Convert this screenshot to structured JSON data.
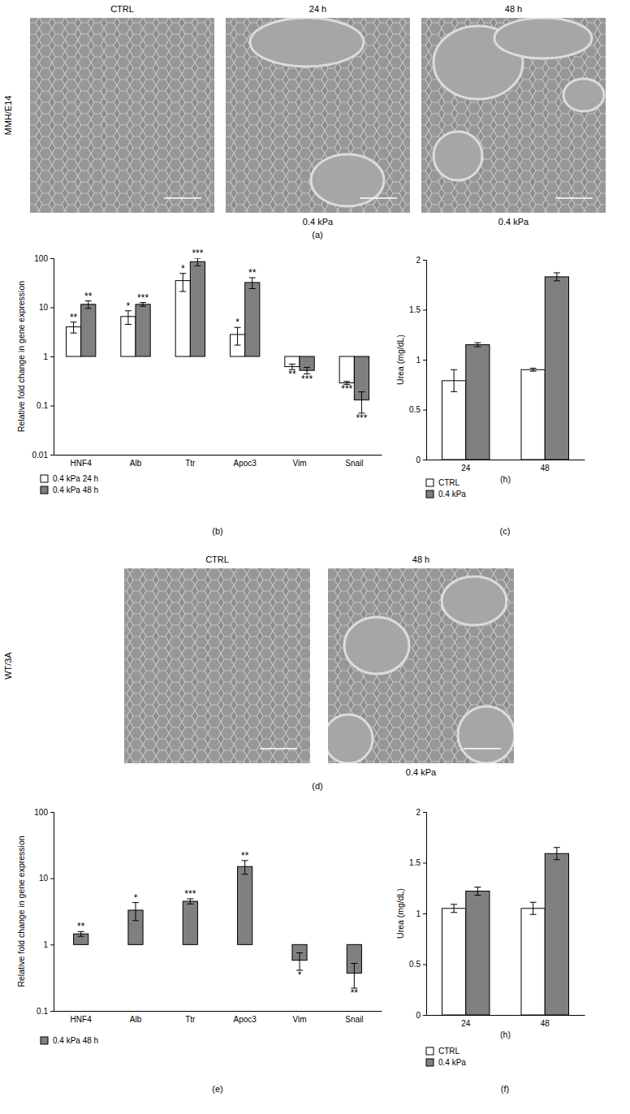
{
  "figure": {
    "panels": [
      {
        "label": "(a)",
        "row_label": "MMH/E14",
        "images": [
          {
            "title": "CTRL"
          },
          {
            "title": "24 h",
            "caption": "0.4 kPa"
          },
          {
            "title": "48 h",
            "caption": "0.4 kPa"
          }
        ]
      },
      {
        "label": "(d)",
        "row_label": "WT/3A",
        "images": [
          {
            "title": "CTRL"
          },
          {
            "title": "48 h",
            "caption": "0.4 kPa"
          }
        ]
      }
    ]
  },
  "chart_data": [
    {
      "type": "bar",
      "title": "(b)",
      "y_label": "Relative fold change in gene expression",
      "categories": [
        "HNF4",
        "Alb",
        "Ttr",
        "Apoc3",
        "Vim",
        "Snail"
      ],
      "series": [
        {
          "name": "0.4 kPa 24 h",
          "color": "#ffffff",
          "values": [
            4,
            6.5,
            35,
            2.8,
            0.62,
            0.29
          ],
          "errors": [
            1,
            2,
            14,
            1.1,
            0.08,
            0.02
          ],
          "significance": [
            "**",
            "*",
            "*",
            "*",
            "**",
            "***"
          ]
        },
        {
          "name": "0.4 kPa 48 h",
          "color": "#808080",
          "values": [
            11.5,
            11.5,
            85,
            32,
            0.52,
            0.13
          ],
          "errors": [
            2,
            1,
            15,
            8,
            0.08,
            0.06
          ],
          "significance": [
            "**",
            "***",
            "***",
            "**",
            "***",
            "***"
          ]
        }
      ],
      "log": "y",
      "ylim": [
        0.01,
        100
      ],
      "yticks": [
        0.01,
        0.1,
        1,
        10,
        100
      ],
      "legend": "bottom"
    },
    {
      "type": "bar",
      "title": "(c)",
      "y_label": "Urea (mg/dL)",
      "x_label": "(h)",
      "categories": [
        "24",
        "48"
      ],
      "series": [
        {
          "name": "CTRL",
          "color": "#ffffff",
          "values": [
            0.79,
            0.9
          ],
          "errors": [
            0.11,
            0.015
          ]
        },
        {
          "name": "0.4 kPa",
          "color": "#808080",
          "values": [
            1.15,
            1.83
          ],
          "errors": [
            0.02,
            0.04
          ]
        }
      ],
      "ylim": [
        0,
        2
      ],
      "yticks": [
        0,
        0.5,
        1,
        1.5,
        2
      ],
      "legend": "bottom"
    },
    {
      "type": "bar",
      "title": "(e)",
      "y_label": "Relative fold change in gene expression",
      "categories": [
        "HNF4",
        "Alb",
        "Ttr",
        "Apoc3",
        "Vim",
        "Snail"
      ],
      "series": [
        {
          "name": "0.4 kPa 48 h",
          "color": "#808080",
          "values": [
            1.45,
            3.3,
            4.5,
            15,
            0.58,
            0.37
          ],
          "errors": [
            0.12,
            1.0,
            0.4,
            3.5,
            0.17,
            0.15
          ],
          "significance": [
            "**",
            "*",
            "***",
            "**",
            "*",
            "**"
          ]
        }
      ],
      "log": "y",
      "ylim": [
        0.1,
        100
      ],
      "yticks": [
        0.1,
        1,
        10,
        100
      ],
      "legend": "bottom"
    },
    {
      "type": "bar",
      "title": "(f)",
      "y_label": "Urea (mg/dL)",
      "x_label": "(h)",
      "categories": [
        "24",
        "48"
      ],
      "series": [
        {
          "name": "CTRL",
          "color": "#ffffff",
          "values": [
            1.05,
            1.05
          ],
          "errors": [
            0.04,
            0.06
          ]
        },
        {
          "name": "0.4 kPa",
          "color": "#808080",
          "values": [
            1.22,
            1.59
          ],
          "errors": [
            0.04,
            0.06
          ]
        }
      ],
      "ylim": [
        0,
        2
      ],
      "yticks": [
        0,
        0.5,
        1,
        1.5,
        2
      ],
      "legend": "bottom"
    }
  ]
}
